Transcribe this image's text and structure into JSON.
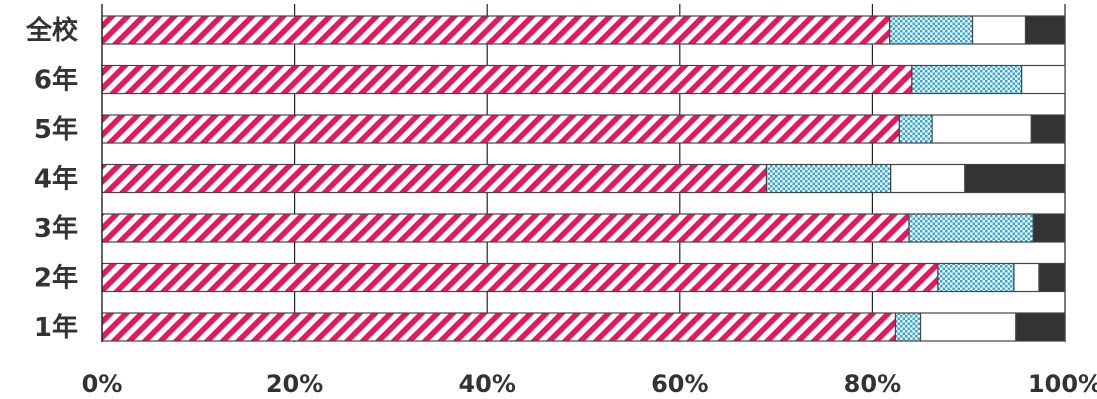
{
  "chart_data": {
    "type": "bar",
    "orientation": "horizontal",
    "stacked": true,
    "percent": true,
    "categories": [
      "全校",
      "6年",
      "5年",
      "4年",
      "3年",
      "2年",
      "1年"
    ],
    "series": [
      {
        "values": [
          81.8,
          84.1,
          82.8,
          69.0,
          83.8,
          86.8,
          82.4
        ]
      },
      {
        "values": [
          8.6,
          11.4,
          3.4,
          12.9,
          12.9,
          7.9,
          2.6
        ]
      },
      {
        "values": [
          5.5,
          4.5,
          10.3,
          7.7,
          0.0,
          2.6,
          9.9
        ]
      },
      {
        "values": [
          4.1,
          0.0,
          3.5,
          10.4,
          3.3,
          2.7,
          5.1
        ]
      }
    ],
    "xlim": [
      0,
      100
    ],
    "xticks": [
      "0%",
      "20%",
      "40%",
      "60%",
      "80%",
      "100%"
    ],
    "grid": "vertical",
    "legend": "none",
    "colors": {
      "stripe": "#e8175d",
      "dots": "#29a9e0",
      "plain": "#ffffff",
      "dark": "#333333",
      "axis": "#222222"
    }
  }
}
